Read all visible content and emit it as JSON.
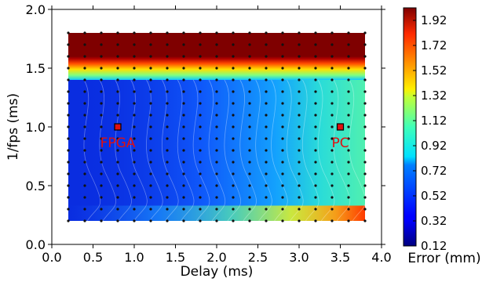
{
  "chart_data": {
    "type": "heatmap",
    "xlabel": "Delay (ms)",
    "ylabel": "1/fps (ms)",
    "xlim": [
      0.0,
      4.0
    ],
    "ylim": [
      0.0,
      2.0
    ],
    "xticks": [
      "0.0",
      "0.5",
      "1.0",
      "1.5",
      "2.0",
      "2.5",
      "3.0",
      "3.5",
      "4.0"
    ],
    "yticks": [
      "0.0",
      "0.5",
      "1.0",
      "1.5",
      "2.0"
    ],
    "data_extent": {
      "x": [
        0.2,
        3.8
      ],
      "y": [
        0.2,
        1.8
      ]
    },
    "grid_points": {
      "x": [
        0.2,
        0.4,
        0.6,
        0.8,
        1.0,
        1.2,
        1.4,
        1.6,
        1.8,
        2.0,
        2.2,
        2.4,
        2.6,
        2.8,
        3.0,
        3.2,
        3.4,
        3.6,
        3.8
      ],
      "y": [
        0.2,
        0.3,
        0.4,
        0.5,
        0.6,
        0.7,
        0.8,
        0.9,
        1.0,
        1.1,
        1.2,
        1.3,
        1.4,
        1.5,
        1.6,
        1.7,
        1.8
      ]
    },
    "colormap": "jet",
    "colorbar": {
      "label": "Error (mm)",
      "min": 0.12,
      "max": 2.02,
      "ticks": [
        "0.12",
        "0.32",
        "0.52",
        "0.72",
        "0.92",
        "1.12",
        "1.32",
        "1.52",
        "1.72",
        "1.92"
      ]
    },
    "markers": [
      {
        "label": "FPGA",
        "x": 0.8,
        "y": 1.0,
        "color": "#e11010"
      },
      {
        "label": "PC",
        "x": 3.5,
        "y": 1.0,
        "color": "#e11010"
      }
    ]
  }
}
